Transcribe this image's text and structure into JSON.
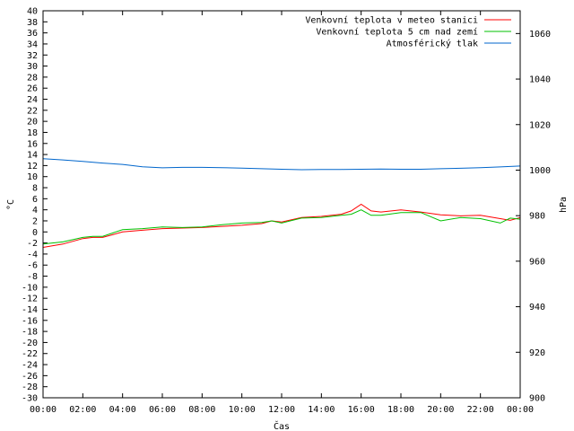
{
  "chart_data": {
    "type": "line",
    "xlabel": "Čas",
    "ylabel": "°C",
    "y2label": "hPa",
    "x_ticks": [
      "00:00",
      "02:00",
      "04:00",
      "06:00",
      "08:00",
      "10:00",
      "12:00",
      "14:00",
      "16:00",
      "18:00",
      "20:00",
      "22:00",
      "00:00"
    ],
    "x_range_hours": [
      0,
      24
    ],
    "ylim": [
      -30,
      40
    ],
    "y_step": 2,
    "y2lim": [
      900,
      1070
    ],
    "y2_ticks": [
      900,
      920,
      940,
      960,
      980,
      1000,
      1020,
      1040,
      1060
    ],
    "grid": false,
    "legend_position": "top-right",
    "series": [
      {
        "name": "Venkovní teplota v meteo stanici",
        "color": "#ff0000",
        "axis": "left",
        "x": [
          0,
          1,
          2,
          2.5,
          3,
          3.5,
          4,
          5,
          6,
          7,
          8,
          9,
          10,
          11,
          11.5,
          12,
          13,
          14,
          15,
          15.5,
          16,
          16.5,
          17,
          18,
          19,
          20,
          21,
          22,
          23,
          23.5,
          24
        ],
        "values": [
          -2.8,
          -2.2,
          -1.2,
          -1.0,
          -1.0,
          -0.5,
          0.0,
          0.3,
          0.6,
          0.7,
          0.8,
          1.0,
          1.2,
          1.5,
          2.0,
          1.8,
          2.6,
          2.8,
          3.2,
          3.8,
          5.0,
          3.8,
          3.6,
          4.0,
          3.6,
          3.1,
          2.9,
          3.0,
          2.4,
          2.1,
          2.6
        ]
      },
      {
        "name": "Venkovní teplota 5 cm nad zemí",
        "color": "#00c000",
        "axis": "left",
        "x": [
          0,
          1,
          2,
          2.5,
          3,
          3.5,
          4,
          5,
          6,
          7,
          8,
          9,
          10,
          11,
          11.5,
          12,
          13,
          14,
          15,
          15.5,
          16,
          16.5,
          17,
          18,
          19,
          20,
          21,
          22,
          23,
          23.5,
          24
        ],
        "values": [
          -2.2,
          -1.8,
          -1.0,
          -0.8,
          -0.8,
          -0.2,
          0.4,
          0.6,
          0.9,
          0.8,
          0.9,
          1.3,
          1.6,
          1.7,
          2.0,
          1.6,
          2.5,
          2.6,
          3.0,
          3.2,
          4.0,
          3.0,
          3.0,
          3.5,
          3.5,
          2.0,
          2.6,
          2.4,
          1.6,
          2.5,
          2.3
        ]
      },
      {
        "name": "Atmosférický tlak",
        "color": "#0066cc",
        "axis": "right",
        "x": [
          0,
          1,
          2,
          3,
          4,
          5,
          6,
          7,
          8,
          9,
          10,
          11,
          12,
          13,
          14,
          15,
          16,
          17,
          18,
          19,
          20,
          21,
          22,
          23,
          24
        ],
        "values": [
          1005,
          1004.5,
          1003.8,
          1003.1,
          1002.5,
          1001.5,
          1001.0,
          1001.2,
          1001.2,
          1001.1,
          1000.9,
          1000.6,
          1000.4,
          1000.2,
          1000.3,
          1000.3,
          1000.4,
          1000.5,
          1000.4,
          1000.4,
          1000.6,
          1000.8,
          1001.1,
          1001.4,
          1001.8
        ]
      }
    ]
  }
}
